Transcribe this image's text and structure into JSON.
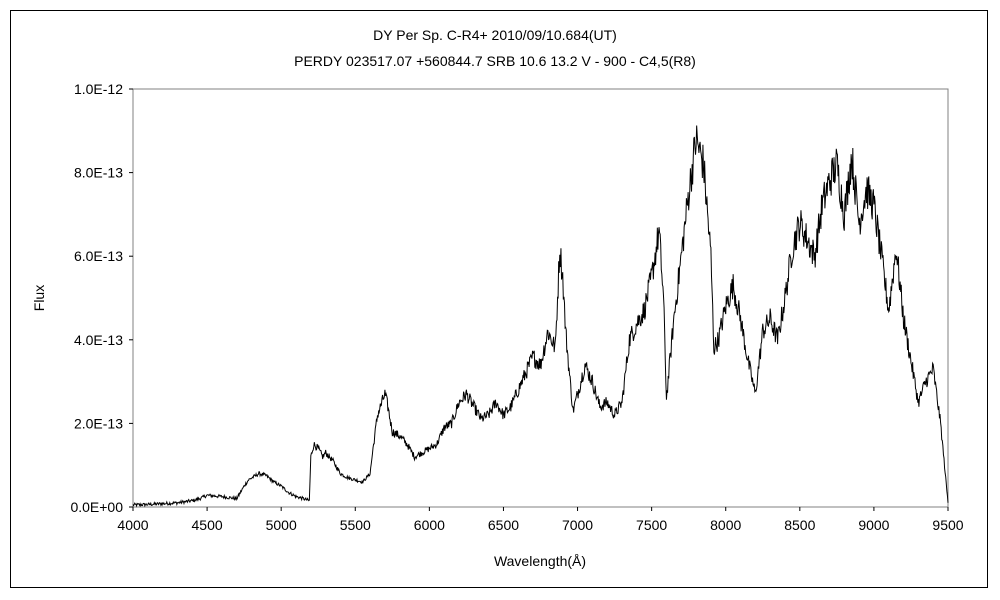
{
  "chart_data": {
    "type": "line",
    "title": "DY Per    Sp. C-R4+    2010/09/10.684(UT)",
    "subtitle": "PERDY 023517.07 +560844.7 SRB 10.6 13.2  V - 900 - C4,5(R8)",
    "xlabel": "Wavelength(Å)",
    "ylabel": "Flux",
    "xlim": [
      4000,
      9500
    ],
    "ylim": [
      0,
      1e-12
    ],
    "grid": false,
    "legend": "none",
    "x_tick_labels": [
      "4000",
      "4500",
      "5000",
      "5500",
      "6000",
      "6500",
      "7000",
      "7500",
      "8000",
      "8500",
      "9000",
      "9500"
    ],
    "y_tick_labels": [
      "0.0E+00",
      "2.0E-13",
      "4.0E-13",
      "6.0E-13",
      "8.0E-13",
      "1.0E-12"
    ],
    "series": [
      {
        "color": "#000000",
        "x": [
          4000,
          4100,
          4200,
          4300,
          4400,
          4450,
          4500,
          4600,
          4700,
          4750,
          4780,
          4850,
          4900,
          4950,
          5000,
          5050,
          5100,
          5150,
          5190,
          5200,
          5220,
          5250,
          5280,
          5300,
          5350,
          5400,
          5450,
          5500,
          5550,
          5600,
          5620,
          5650,
          5680,
          5700,
          5720,
          5750,
          5800,
          5850,
          5900,
          5950,
          6000,
          6050,
          6100,
          6150,
          6200,
          6250,
          6300,
          6350,
          6400,
          6450,
          6500,
          6550,
          6600,
          6650,
          6700,
          6750,
          6800,
          6850,
          6880,
          6900,
          6920,
          6950,
          6970,
          7000,
          7050,
          7100,
          7150,
          7200,
          7250,
          7300,
          7350,
          7400,
          7450,
          7500,
          7550,
          7580,
          7600,
          7650,
          7700,
          7750,
          7800,
          7850,
          7900,
          7920,
          7950,
          8000,
          8050,
          8100,
          8150,
          8200,
          8250,
          8300,
          8350,
          8400,
          8450,
          8500,
          8550,
          8600,
          8650,
          8700,
          8750,
          8800,
          8850,
          8900,
          8950,
          9000,
          9050,
          9100,
          9150,
          9200,
          9250,
          9300,
          9350,
          9400,
          9450,
          9500
        ],
        "y": [
          5e-15,
          6e-15,
          8e-15,
          1e-14,
          1.5e-14,
          2e-14,
          2.8e-14,
          2.5e-14,
          2e-14,
          5e-14,
          6.5e-14,
          8e-14,
          7.5e-14,
          6e-14,
          5e-14,
          3.5e-14,
          2.5e-14,
          2e-14,
          1.5e-14,
          1.2e-13,
          1.5e-13,
          1.4e-13,
          1.2e-13,
          1.3e-13,
          1.1e-13,
          8e-14,
          7e-14,
          6.5e-14,
          6e-14,
          8e-14,
          1.4e-13,
          2.2e-13,
          2.5e-13,
          2.7e-13,
          2.4e-13,
          1.8e-13,
          1.7e-13,
          1.5e-13,
          1.2e-13,
          1.3e-13,
          1.4e-13,
          1.5e-13,
          1.9e-13,
          2e-13,
          2.5e-13,
          2.7e-13,
          2.4e-13,
          2.1e-13,
          2.2e-13,
          2.5e-13,
          2.2e-13,
          2.4e-13,
          2.8e-13,
          3.2e-13,
          3.6e-13,
          3.4e-13,
          4.2e-13,
          3.8e-13,
          6.2e-13,
          5.5e-13,
          4.2e-13,
          3e-13,
          2.3e-13,
          2.7e-13,
          3.4e-13,
          3e-13,
          2.4e-13,
          2.5e-13,
          2.2e-13,
          2.5e-13,
          4e-13,
          4.4e-13,
          4.7e-13,
          5.5e-13,
          6.6e-13,
          5e-13,
          2.6e-13,
          4.5e-13,
          6e-13,
          7.5e-13,
          8.8e-13,
          8.2e-13,
          6e-13,
          3.8e-13,
          4e-13,
          4.8e-13,
          5.3e-13,
          4.5e-13,
          3.5e-13,
          2.7e-13,
          4.2e-13,
          4.5e-13,
          4e-13,
          5e-13,
          6.2e-13,
          6.8e-13,
          6.4e-13,
          6e-13,
          7.2e-13,
          7.8e-13,
          8.2e-13,
          7e-13,
          8.4e-13,
          6.8e-13,
          7.6e-13,
          7.2e-13,
          6e-13,
          4.7e-13,
          6.2e-13,
          4.5e-13,
          3.5e-13,
          2.5e-13,
          3e-13,
          3.3e-13,
          2e-13,
          1e-14
        ]
      }
    ]
  }
}
